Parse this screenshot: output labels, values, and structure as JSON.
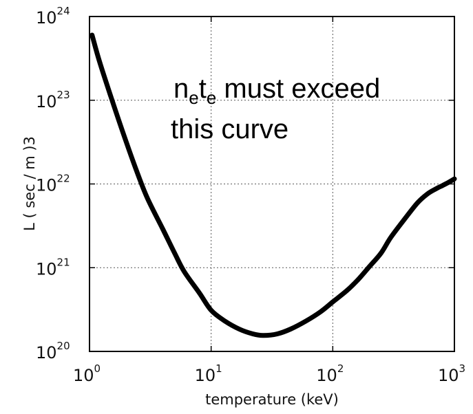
{
  "chart_data": {
    "type": "line",
    "title": "",
    "xlabel": "temperature (keV)",
    "ylabel": "L ( sec / m )3",
    "xscale": "log",
    "yscale": "log",
    "xlim": [
      1,
      1000
    ],
    "ylim": [
      1e+20,
      1e+24
    ],
    "grid": true,
    "x_ticks": [
      {
        "base": "10",
        "exp": "0"
      },
      {
        "base": "10",
        "exp": "1"
      },
      {
        "base": "10",
        "exp": "2"
      },
      {
        "base": "10",
        "exp": "3"
      }
    ],
    "y_ticks": [
      {
        "base": "10",
        "exp": "20"
      },
      {
        "base": "10",
        "exp": "21"
      },
      {
        "base": "10",
        "exp": "22"
      },
      {
        "base": "10",
        "exp": "23"
      },
      {
        "base": "10",
        "exp": "24"
      }
    ],
    "annotation": {
      "line1": {
        "n": "n",
        "n_sub": "e",
        "t": "t",
        "t_sub": "e",
        "rest": " must exceed"
      },
      "line2": "this curve"
    },
    "series": [
      {
        "color": "#000000",
        "points": [
          [
            1.05,
            6e+23
          ],
          [
            1.2,
            3e+23
          ],
          [
            1.5,
            1.1e+23
          ],
          [
            2.0,
            3.2e+22
          ],
          [
            2.5,
            1.3e+22
          ],
          [
            3.0,
            6.7e+21
          ],
          [
            4.0,
            2.9e+21
          ],
          [
            5.0,
            1.5e+21
          ],
          [
            6.0,
            9e+20
          ],
          [
            8.0,
            5e+20
          ],
          [
            10,
            3.1e+20
          ],
          [
            13,
            2.3e+20
          ],
          [
            17,
            1.85e+20
          ],
          [
            22,
            1.62e+20
          ],
          [
            27,
            1.55e+20
          ],
          [
            35,
            1.62e+20
          ],
          [
            45,
            1.85e+20
          ],
          [
            60,
            2.3e+20
          ],
          [
            80,
            3e+20
          ],
          [
            100,
            3.9e+20
          ],
          [
            130,
            5.3e+20
          ],
          [
            160,
            7.1e+20
          ],
          [
            200,
            1.03e+21
          ],
          [
            250,
            1.5e+21
          ],
          [
            300,
            2.3e+21
          ],
          [
            400,
            4e+21
          ],
          [
            500,
            6e+21
          ],
          [
            600,
            7.6e+21
          ],
          [
            700,
            8.7e+21
          ],
          [
            800,
            9.6e+21
          ],
          [
            900,
            1.05e+22
          ],
          [
            1000,
            1.15e+22
          ]
        ]
      }
    ]
  }
}
